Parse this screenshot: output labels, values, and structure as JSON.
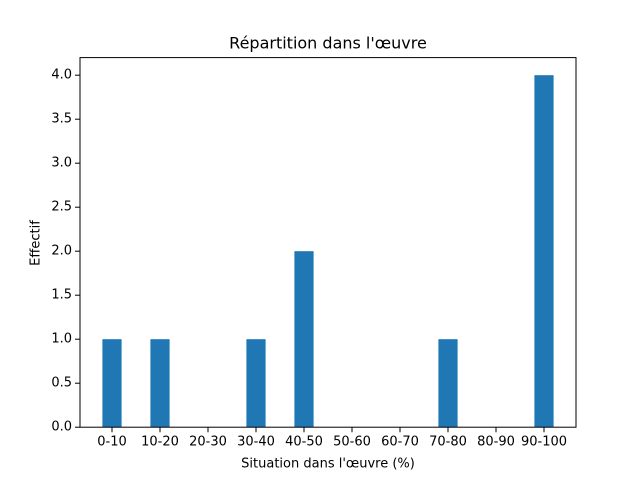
{
  "chart_data": {
    "type": "bar",
    "title": "Répartition dans l'œuvre",
    "x_label": "Situation dans l'œuvre (%)",
    "y_label": "Effectif",
    "categories": [
      "0-10",
      "10-20",
      "20-30",
      "30-40",
      "40-50",
      "50-60",
      "60-70",
      "70-80",
      "80-90",
      "90-100"
    ],
    "values": [
      1,
      1,
      0,
      1,
      2,
      0,
      0,
      1,
      0,
      4
    ],
    "color": "#1f77b4",
    "ylim": [
      0,
      4.2
    ],
    "yticks": [
      {
        "value": 0,
        "label": "0.0"
      },
      {
        "value": 0.5,
        "label": "0.5"
      },
      {
        "value": 1,
        "label": "1.0"
      },
      {
        "value": 1.5,
        "label": "1.5"
      },
      {
        "value": 2,
        "label": "2.0"
      },
      {
        "value": 2.5,
        "label": "2.5"
      },
      {
        "value": 3,
        "label": "3.0"
      },
      {
        "value": 3.5,
        "label": "3.5"
      },
      {
        "value": 4,
        "label": "4.0"
      }
    ],
    "grid": false
  }
}
